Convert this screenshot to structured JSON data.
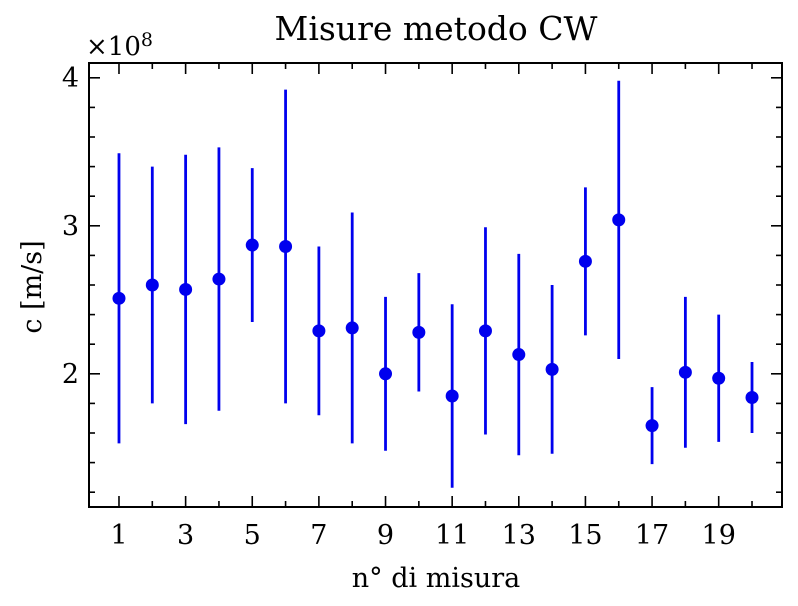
{
  "chart_data": {
    "type": "scatter",
    "title": "Misure metodo CW",
    "xlabel": "n° di misura",
    "ylabel": "c [m/s]",
    "y_multiplier": "×10",
    "y_exponent": "8",
    "xlim": [
      0.1,
      20.9
    ],
    "ylim": [
      1.1,
      4.1
    ],
    "x_ticks": [
      1,
      3,
      5,
      7,
      9,
      11,
      13,
      15,
      17,
      19
    ],
    "y_ticks": [
      2,
      3,
      4
    ],
    "grid": false,
    "series_color": "#0000ee",
    "points": [
      {
        "x": 1,
        "y": 2.51,
        "yerr": 0.98
      },
      {
        "x": 2,
        "y": 2.6,
        "yerr": 0.8
      },
      {
        "x": 3,
        "y": 2.57,
        "yerr": 0.91
      },
      {
        "x": 4,
        "y": 2.64,
        "yerr": 0.89
      },
      {
        "x": 5,
        "y": 2.87,
        "yerr": 0.52
      },
      {
        "x": 6,
        "y": 2.86,
        "yerr": 1.06
      },
      {
        "x": 7,
        "y": 2.29,
        "yerr": 0.57
      },
      {
        "x": 8,
        "y": 2.31,
        "yerr": 0.78
      },
      {
        "x": 9,
        "y": 2.0,
        "yerr": 0.52
      },
      {
        "x": 10,
        "y": 2.28,
        "yerr": 0.4
      },
      {
        "x": 11,
        "y": 1.85,
        "yerr": 0.62
      },
      {
        "x": 12,
        "y": 2.29,
        "yerr": 0.7
      },
      {
        "x": 13,
        "y": 2.13,
        "yerr": 0.68
      },
      {
        "x": 14,
        "y": 2.03,
        "yerr": 0.57
      },
      {
        "x": 15,
        "y": 2.76,
        "yerr": 0.5
      },
      {
        "x": 16,
        "y": 3.04,
        "yerr": 0.94
      },
      {
        "x": 17,
        "y": 1.65,
        "yerr": 0.26
      },
      {
        "x": 18,
        "y": 2.01,
        "yerr": 0.51
      },
      {
        "x": 19,
        "y": 1.97,
        "yerr": 0.43
      },
      {
        "x": 20,
        "y": 1.84,
        "yerr": 0.24
      }
    ]
  }
}
